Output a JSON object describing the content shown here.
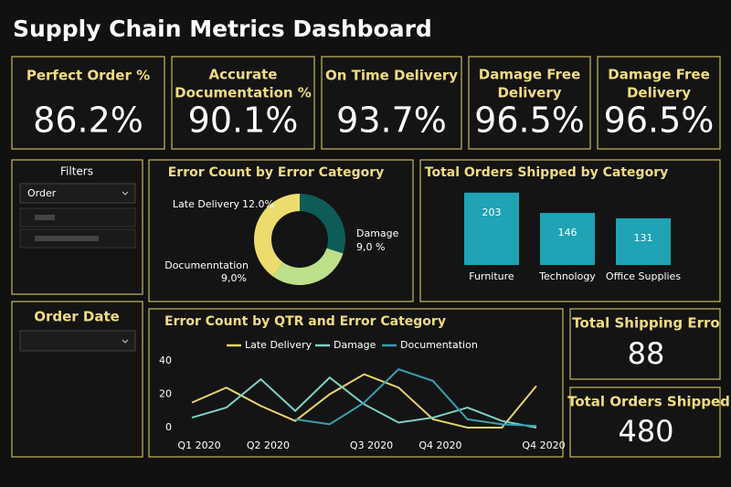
{
  "title": "Supply Chain Metrics Dashboard",
  "kpis": [
    {
      "label_lines": [
        "Perfect Order %"
      ],
      "value": "86.2%"
    },
    {
      "label_lines": [
        "Accurate",
        "Documentation %"
      ],
      "value": "90.1%"
    },
    {
      "label_lines": [
        "On Time Delivery"
      ],
      "value": "93.7%"
    },
    {
      "label_lines": [
        "Damage Free",
        "Delivery"
      ],
      "value": "96.5%"
    },
    {
      "label_lines": [
        "Damage Free",
        "Delivery"
      ],
      "value": "96.5%"
    }
  ],
  "filters": {
    "title": "Filters",
    "dropdown": "Order"
  },
  "order_date": {
    "title": "Order Date"
  },
  "totals": [
    {
      "label": "Total Shipping Erro",
      "value": 88
    },
    {
      "label": "Total Orders Shipped",
      "value": 480
    }
  ],
  "chart_data": [
    {
      "type": "pie",
      "title": "Error Count by Error Category",
      "categories": [
        "Damage",
        "Documenntation",
        "Late Delivery"
      ],
      "values": [
        9.0,
        9.0,
        12.0
      ],
      "value_labels": [
        "9,0 %",
        "9,0%",
        "12.0%"
      ],
      "colors": [
        "#0e5c57",
        "#bfe08a",
        "#ecdc6e"
      ]
    },
    {
      "type": "bar",
      "title": "Total Orders  Shipped by Category",
      "categories": [
        "Furniture",
        "Technology",
        "Office Supplies"
      ],
      "values": [
        203,
        146,
        131
      ],
      "color": "#1fa3b5"
    },
    {
      "type": "line",
      "title": "Error Count by QTR and Error Category",
      "categories": [
        "Q1 2020",
        null,
        "Q2 2020",
        null,
        null,
        "Q3 2020",
        null,
        "Q4 2020",
        null,
        null,
        "Q4 2020"
      ],
      "series": [
        {
          "name": "Late Delivery",
          "color": "#e8d56b",
          "values": [
            15,
            24,
            13,
            4,
            20,
            32,
            24,
            5,
            0,
            0,
            25
          ]
        },
        {
          "name": "Damage",
          "color": "#7fd1c7",
          "values": [
            6,
            12,
            29,
            10,
            30,
            14,
            3,
            6,
            12,
            4,
            0
          ]
        },
        {
          "name": "Documentation",
          "color": "#3a9fb0",
          "values": [
            null,
            null,
            null,
            5,
            2,
            15,
            35,
            28,
            5,
            2,
            1
          ]
        }
      ],
      "ylim": [
        0,
        40
      ],
      "yticks": [
        0,
        20,
        40
      ],
      "grid": false
    }
  ]
}
